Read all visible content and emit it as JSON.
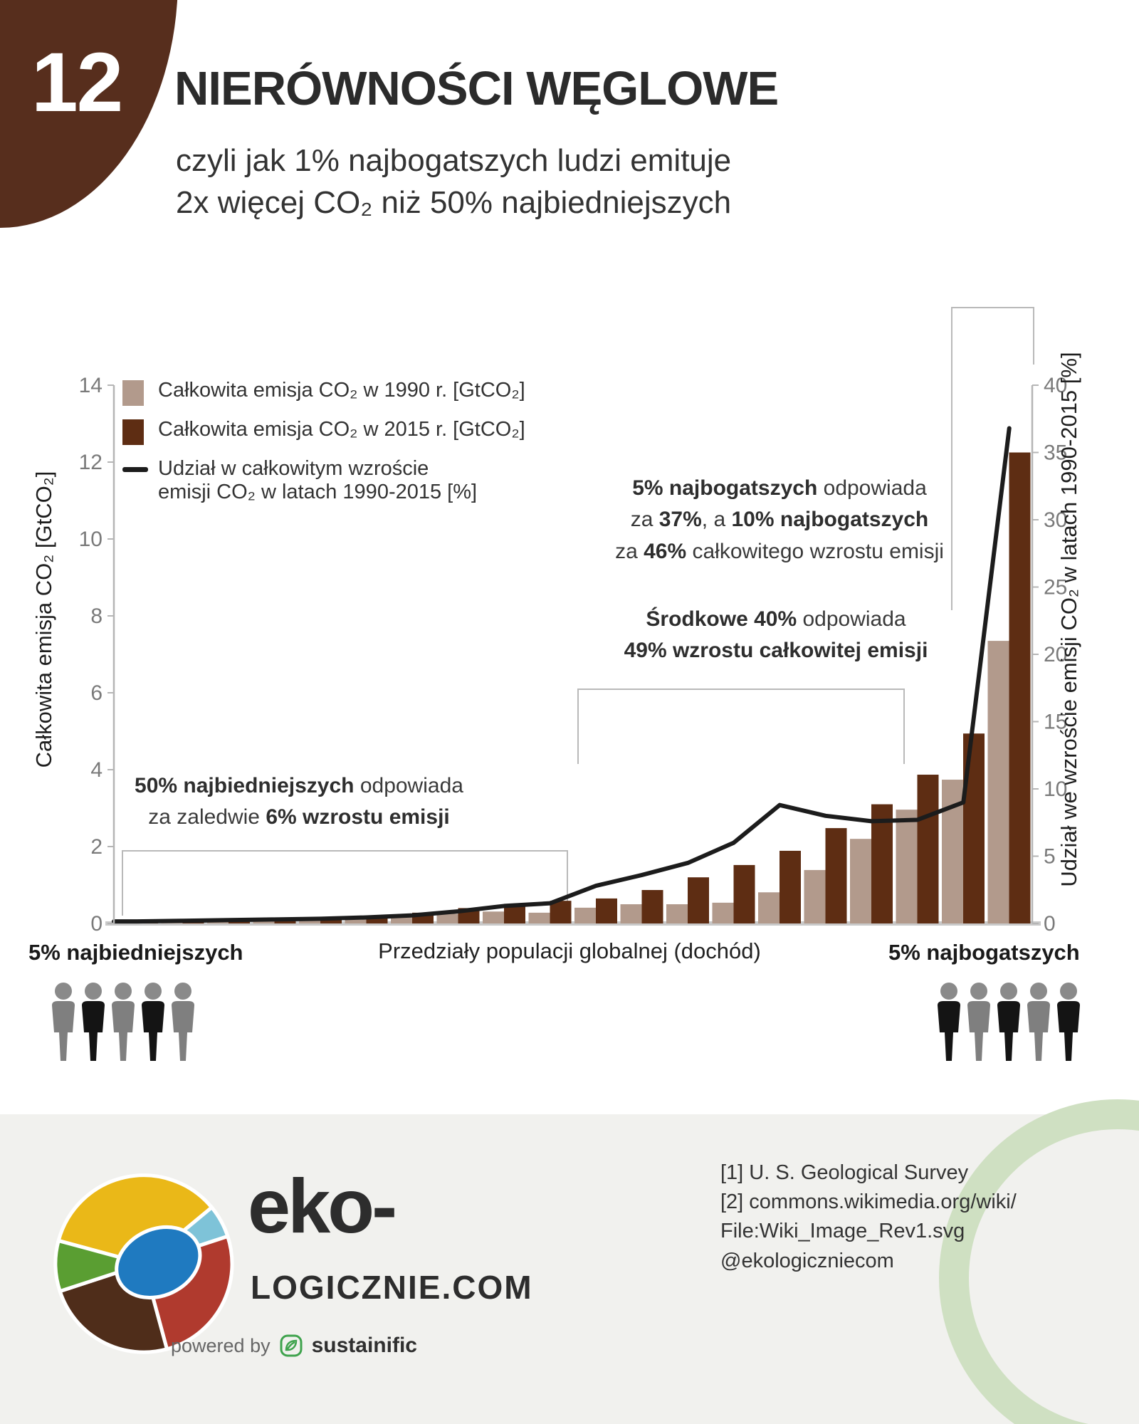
{
  "badge": {
    "number": "12"
  },
  "header": {
    "title": "NIERÓWNOŚCI WĘGLOWE",
    "subtitle_line1": "czyli jak 1% najbogatszych ludzi emituje",
    "subtitle_line2": "2x więcej CO₂ niż 50% najbiedniejszych"
  },
  "chart_data": {
    "type": "bar+line",
    "group_count": 20,
    "groups_note": "20 równych grup (po 5%) populacji globalnej uszeregowanych wg dochodu, od najbiedniejszych do najbogatszych",
    "series": [
      {
        "name": "Całkowita emisja  CO₂ w 1990 r. [GtCO₂]",
        "color": "#b29a8c",
        "axis": "left",
        "values": [
          0.01,
          0.08,
          0.1,
          0.1,
          0.12,
          0.14,
          0.16,
          0.25,
          0.31,
          0.28,
          0.41,
          0.5,
          0.5,
          0.54,
          0.81,
          1.39,
          2.2,
          2.96,
          3.74,
          7.35
        ]
      },
      {
        "name": "Całkowita emisja  CO₂ w 2015 r. [GtCO₂]",
        "color": "#5e2d13",
        "axis": "left",
        "values": [
          0.02,
          0.1,
          0.12,
          0.14,
          0.17,
          0.2,
          0.28,
          0.4,
          0.46,
          0.59,
          0.65,
          0.87,
          1.2,
          1.52,
          1.89,
          2.48,
          3.1,
          3.87,
          4.94,
          12.25
        ]
      }
    ],
    "line_series": {
      "name": "Udział w całkowitym wzroście emisji CO₂ w latach 1990-2015 [%]",
      "color": "#1c1c1c",
      "axis": "right",
      "values": [
        0.15,
        0.2,
        0.25,
        0.3,
        0.35,
        0.45,
        0.6,
        0.9,
        1.3,
        1.5,
        2.8,
        3.6,
        4.5,
        6.0,
        8.8,
        8.0,
        7.6,
        7.7,
        9.0,
        36.8
      ]
    },
    "y_left": {
      "label": "Całkowita emisja CO₂ [GtCO₂]",
      "ticks": [
        0,
        2,
        4,
        6,
        8,
        10,
        12,
        14
      ],
      "range": [
        0,
        14
      ]
    },
    "y_right": {
      "label": "Udział we wzroście emisji CO₂ w latach 1990-2015 [%]",
      "ticks": [
        0,
        5,
        10,
        15,
        20,
        25,
        30,
        35,
        40
      ],
      "range": [
        0,
        40
      ]
    },
    "x_axis": {
      "label": "Przedziały populacji globalnej (dochód)",
      "left_end_label": "5% najbiedniejszych",
      "right_end_label": "5% najbogatszych"
    },
    "grid": false,
    "legend_position": "top-left-inside",
    "summary": {
      "poorest_50_growth_share_pct": 6,
      "middle_40_growth_share_pct": 49,
      "richest_10_growth_share_pct": 46,
      "richest_5_growth_share_pct": 37
    }
  },
  "legend": {
    "item3_line1": "Udział w całkowitym wzroście",
    "item3_line2": "emisji  CO₂ w latach 1990-2015 [%]"
  },
  "annotations": {
    "rich": {
      "lines": [
        [
          {
            "t": "5% najbogatszych",
            "b": true
          },
          {
            "t": " odpowiada",
            "b": false
          }
        ],
        [
          {
            "t": "za ",
            "b": false
          },
          {
            "t": "37%",
            "b": true
          },
          {
            "t": ", a ",
            "b": false
          },
          {
            "t": "10% najbogatszych",
            "b": true
          }
        ],
        [
          {
            "t": "za ",
            "b": false
          },
          {
            "t": "46%",
            "b": true
          },
          {
            "t": " całkowitego wzrostu emisji",
            "b": false
          }
        ]
      ]
    },
    "middle": {
      "lines": [
        [
          {
            "t": "Środkowe 40%",
            "b": true
          },
          {
            "t": " odpowiada",
            "b": false
          }
        ],
        [
          {
            "t": "49% wzrostu całkowitej emisji",
            "b": true
          }
        ]
      ]
    },
    "poor": {
      "lines": [
        [
          {
            "t": "50% najbiedniejszych",
            "b": true
          },
          {
            "t": " odpowiada",
            "b": false
          }
        ],
        [
          {
            "t": "za zaledwie ",
            "b": false
          },
          {
            "t": "6% wzrostu emisji",
            "b": true
          }
        ]
      ]
    }
  },
  "people": {
    "left_colors": [
      "#7f7f7f",
      "#141414",
      "#7f7f7f",
      "#141414",
      "#7f7f7f"
    ],
    "right_colors": [
      "#141414",
      "#7f7f7f",
      "#141414",
      "#7f7f7f",
      "#141414"
    ]
  },
  "footer": {
    "brand_top": "eko-",
    "brand_bottom": "LOGICZNIE.COM",
    "powered_by": "powered by",
    "powered_brand": "sustainific",
    "references": [
      "[1] U. S. Geological Survey",
      "[2] commons.wikimedia.org/wiki/",
      "File:Wiki_Image_Rev1.svg",
      "@ekologiczniecom"
    ]
  },
  "colors": {
    "accent_brown": "#572e1d",
    "bar_1990": "#b29a8c",
    "bar_2015": "#5e2d13",
    "growth_line": "#1c1c1c",
    "bracket_gray": "#b9b9b9",
    "footer_bg": "#f1f1ee",
    "ring_green": "#cfe0c2",
    "logo_yellow": "#eab818",
    "logo_lightblue": "#7ec3d8",
    "logo_red": "#b03a2e",
    "logo_brown": "#4f2d1a",
    "logo_green": "#5a9e32",
    "logo_blue": "#1f7ac0",
    "sustainific_green": "#3fa34d"
  }
}
